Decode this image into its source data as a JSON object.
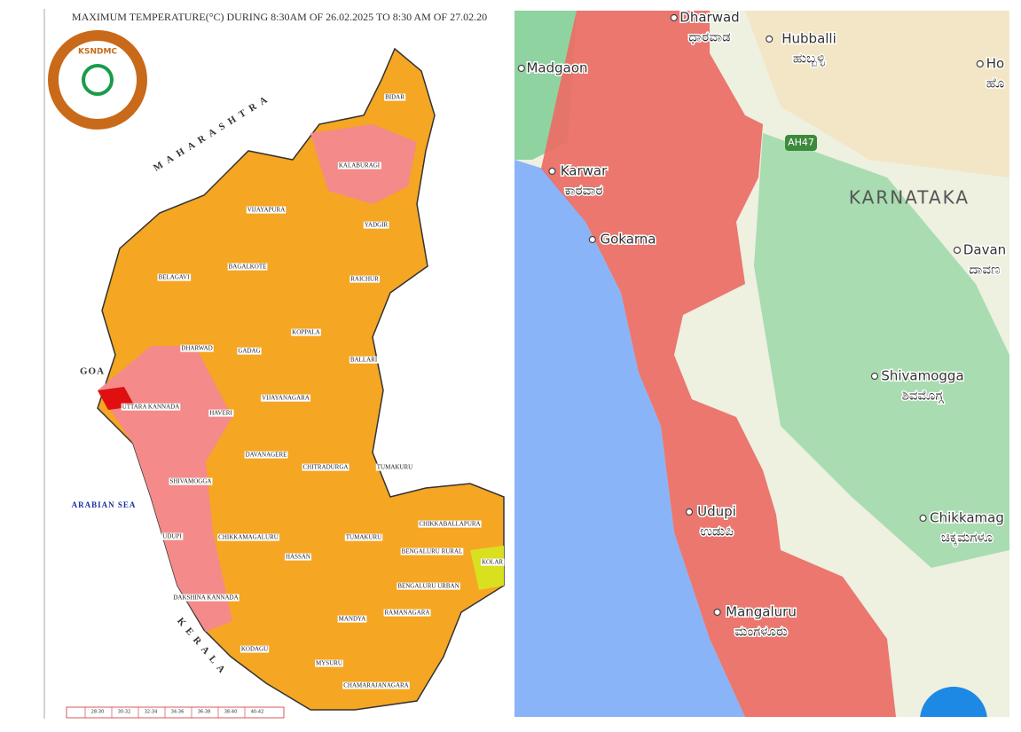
{
  "left_map": {
    "title": "MAXIMUM TEMPERATURE(°C) DURING 8:30AM OF 26.02.2025 TO 8:30 AM OF 27.02.20",
    "logo": "KSNDMC",
    "regions": [
      "MAHARASHTRA",
      "GOA",
      "ARABIAN SEA",
      "KERALA"
    ],
    "districts": [
      "BIDAR",
      "KALABURAGI",
      "VIJAYAPURA",
      "YADGIR",
      "BAGALKOTE",
      "BELAGAVI",
      "RAICHUR",
      "KOPPALA",
      "DHARWAD",
      "GADAG",
      "BALLARI",
      "UTTARA KANNADA",
      "HAVERI",
      "VIJAYANAGARA",
      "DAVANAGERE",
      "CHITRADURGA",
      "TUMAKURU",
      "SHIVAMOGGA",
      "CHIKKABALLAPURA",
      "UDUPI",
      "CHIKKAMAGALURU",
      "TUMAKURU",
      "BENGALURU RURAL",
      "KOLAR",
      "HASSAN",
      "BENGALURU URBAN",
      "DAKSHINA KANNADA",
      "RAMANAGARA",
      "MANDYA",
      "KODAGU",
      "MYSURU",
      "CHAMARAJANAGARA"
    ],
    "legend": [
      "28-30",
      "30-32",
      "32-34",
      "34-36",
      "36-38",
      "38-40",
      "40-42"
    ]
  },
  "right_map": {
    "state": "KARNATAKA",
    "road": "AH47",
    "places": [
      {
        "name": "Dharwad",
        "local": "ಧಾರವಾಡ"
      },
      {
        "name": "Hubballi",
        "local": "ಹುಬ್ಬಳ್ಳಿ"
      },
      {
        "name": "Madgaon"
      },
      {
        "name": "Karwar",
        "local": "ಕಾರವಾರ"
      },
      {
        "name": "Gokarna"
      },
      {
        "name": "Udupi",
        "local": "ಉಡುಪಿ"
      },
      {
        "name": "Mangaluru",
        "local": "ಮಂಗಳೂರು"
      },
      {
        "name": "Shivamogga",
        "local": "ಶಿವಮೊಗ್ಗ"
      },
      {
        "name": "Chikkamag",
        "local": "ಚಿಕ್ಕಮಗಳೂ"
      },
      {
        "name": "Davan",
        "local": "ದಾವಣ"
      },
      {
        "name": "Ho",
        "local": "ಹೊ"
      }
    ]
  }
}
